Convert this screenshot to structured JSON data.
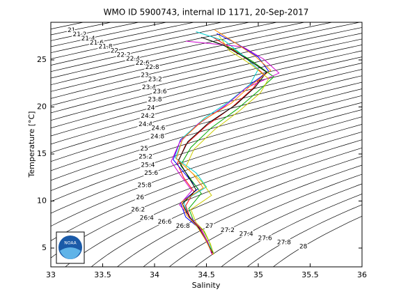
{
  "chart_data": {
    "type": "ts-diagram",
    "title": "WMO ID 5900743, internal ID 1171, 20-Sep-2017",
    "xlabel": "Salinity",
    "ylabel": "Temperature [°C]",
    "xlim": [
      33,
      36
    ],
    "ylim": [
      3,
      29
    ],
    "xticks": [
      33,
      33.5,
      34,
      34.5,
      35,
      35.5,
      36
    ],
    "yticks": [
      5,
      10,
      15,
      20,
      25
    ],
    "logo_text": "NOAA",
    "isopycnals": [
      20.8,
      21,
      21.2,
      21.4,
      21.6,
      21.8,
      22,
      22.2,
      22.4,
      22.6,
      22.8,
      23,
      23.2,
      23.4,
      23.6,
      23.8,
      24,
      24.2,
      24.4,
      24.6,
      24.8,
      25,
      25.2,
      25.4,
      25.6,
      25.8,
      26,
      26.2,
      26.4,
      26.6,
      26.8,
      27,
      27.2,
      27.4,
      27.6,
      27.8,
      28
    ],
    "profiles": [
      {
        "color": "#ff0000",
        "salinity": [
          34.56,
          34.52,
          34.45,
          34.35,
          34.3,
          34.38,
          34.28,
          34.22,
          34.3,
          34.5,
          34.75,
          34.95,
          35.05,
          34.9,
          34.7,
          34.55
        ],
        "temperature": [
          4.3,
          5.5,
          7,
          8,
          9.5,
          11,
          12.5,
          14,
          16,
          18,
          20,
          22,
          23.5,
          25,
          26.5,
          27.5
        ]
      },
      {
        "color": "#0000ff",
        "salinity": [
          34.55,
          34.5,
          34.42,
          34.3,
          34.25,
          34.42,
          34.3,
          34.18,
          34.25,
          34.45,
          34.7,
          34.9,
          35.1,
          35.0,
          34.8,
          34.6
        ],
        "temperature": [
          4.5,
          5.8,
          7.2,
          8.3,
          9.8,
          11.3,
          12.8,
          14.4,
          16.5,
          18.4,
          20.3,
          22.2,
          23.8,
          25.3,
          26.7,
          27.8
        ]
      },
      {
        "color": "#00aa00",
        "salinity": [
          34.57,
          34.53,
          34.47,
          34.38,
          34.33,
          34.45,
          34.35,
          34.25,
          34.35,
          34.55,
          34.8,
          35.0,
          35.15,
          34.95,
          34.75,
          34.5
        ],
        "temperature": [
          4.4,
          5.6,
          6.9,
          7.8,
          9.2,
          10.8,
          12.3,
          13.8,
          15.7,
          17.8,
          19.8,
          21.7,
          23.2,
          24.8,
          26.2,
          27.2
        ]
      },
      {
        "color": "#00cccc",
        "salinity": [
          34.56,
          34.5,
          34.4,
          34.32,
          34.28,
          34.5,
          34.4,
          34.2,
          34.28,
          34.48,
          34.72,
          34.92,
          35.0,
          34.85,
          34.68,
          34.4
        ],
        "temperature": [
          4.6,
          5.9,
          7.4,
          8.6,
          10,
          11.5,
          13,
          14.6,
          16.8,
          18.8,
          20.6,
          22.4,
          24,
          25.5,
          27,
          28
        ]
      },
      {
        "color": "#cc00cc",
        "salinity": [
          34.55,
          34.51,
          34.44,
          34.36,
          34.24,
          34.36,
          34.26,
          34.16,
          34.24,
          34.42,
          34.68,
          34.88,
          35.2,
          35.05,
          34.85,
          34.3
        ],
        "temperature": [
          4.4,
          5.7,
          7.1,
          8.1,
          9.6,
          11.1,
          12.6,
          14.2,
          16.2,
          18.2,
          20.1,
          22,
          23.6,
          25.1,
          26.4,
          27
        ]
      },
      {
        "color": "#cccc00",
        "salinity": [
          34.57,
          34.54,
          34.48,
          34.4,
          34.35,
          34.55,
          34.45,
          34.3,
          34.38,
          34.58,
          34.82,
          35.02,
          35.1,
          34.92,
          34.72,
          34.62
        ],
        "temperature": [
          4.3,
          5.4,
          6.8,
          7.7,
          9.1,
          10.6,
          12.1,
          13.6,
          15.5,
          17.6,
          19.6,
          21.5,
          23,
          24.6,
          26,
          27.6
        ]
      },
      {
        "color": "#000000",
        "salinity": [
          34.56,
          34.5,
          34.43,
          34.34,
          34.27,
          34.4,
          34.32,
          34.23,
          34.32,
          34.52,
          34.78,
          34.97,
          35.08,
          34.88,
          34.66,
          34.45
        ],
        "temperature": [
          4.5,
          5.7,
          7.1,
          8.2,
          9.7,
          11.2,
          12.7,
          14.3,
          16.3,
          18.3,
          20.2,
          22.1,
          23.7,
          25.2,
          26.6,
          27.4
        ]
      },
      {
        "color": "#ff8800",
        "salinity": [
          34.55,
          34.49,
          34.41,
          34.31,
          34.26,
          34.47,
          34.37,
          34.21,
          34.27,
          34.47,
          34.74,
          34.93,
          35.12,
          34.97,
          34.78,
          34.58
        ],
        "temperature": [
          4.6,
          5.9,
          7.3,
          8.5,
          9.9,
          11.4,
          12.9,
          14.5,
          16.6,
          18.6,
          20.4,
          22.3,
          23.9,
          25.4,
          26.8,
          28.2
        ]
      }
    ]
  }
}
